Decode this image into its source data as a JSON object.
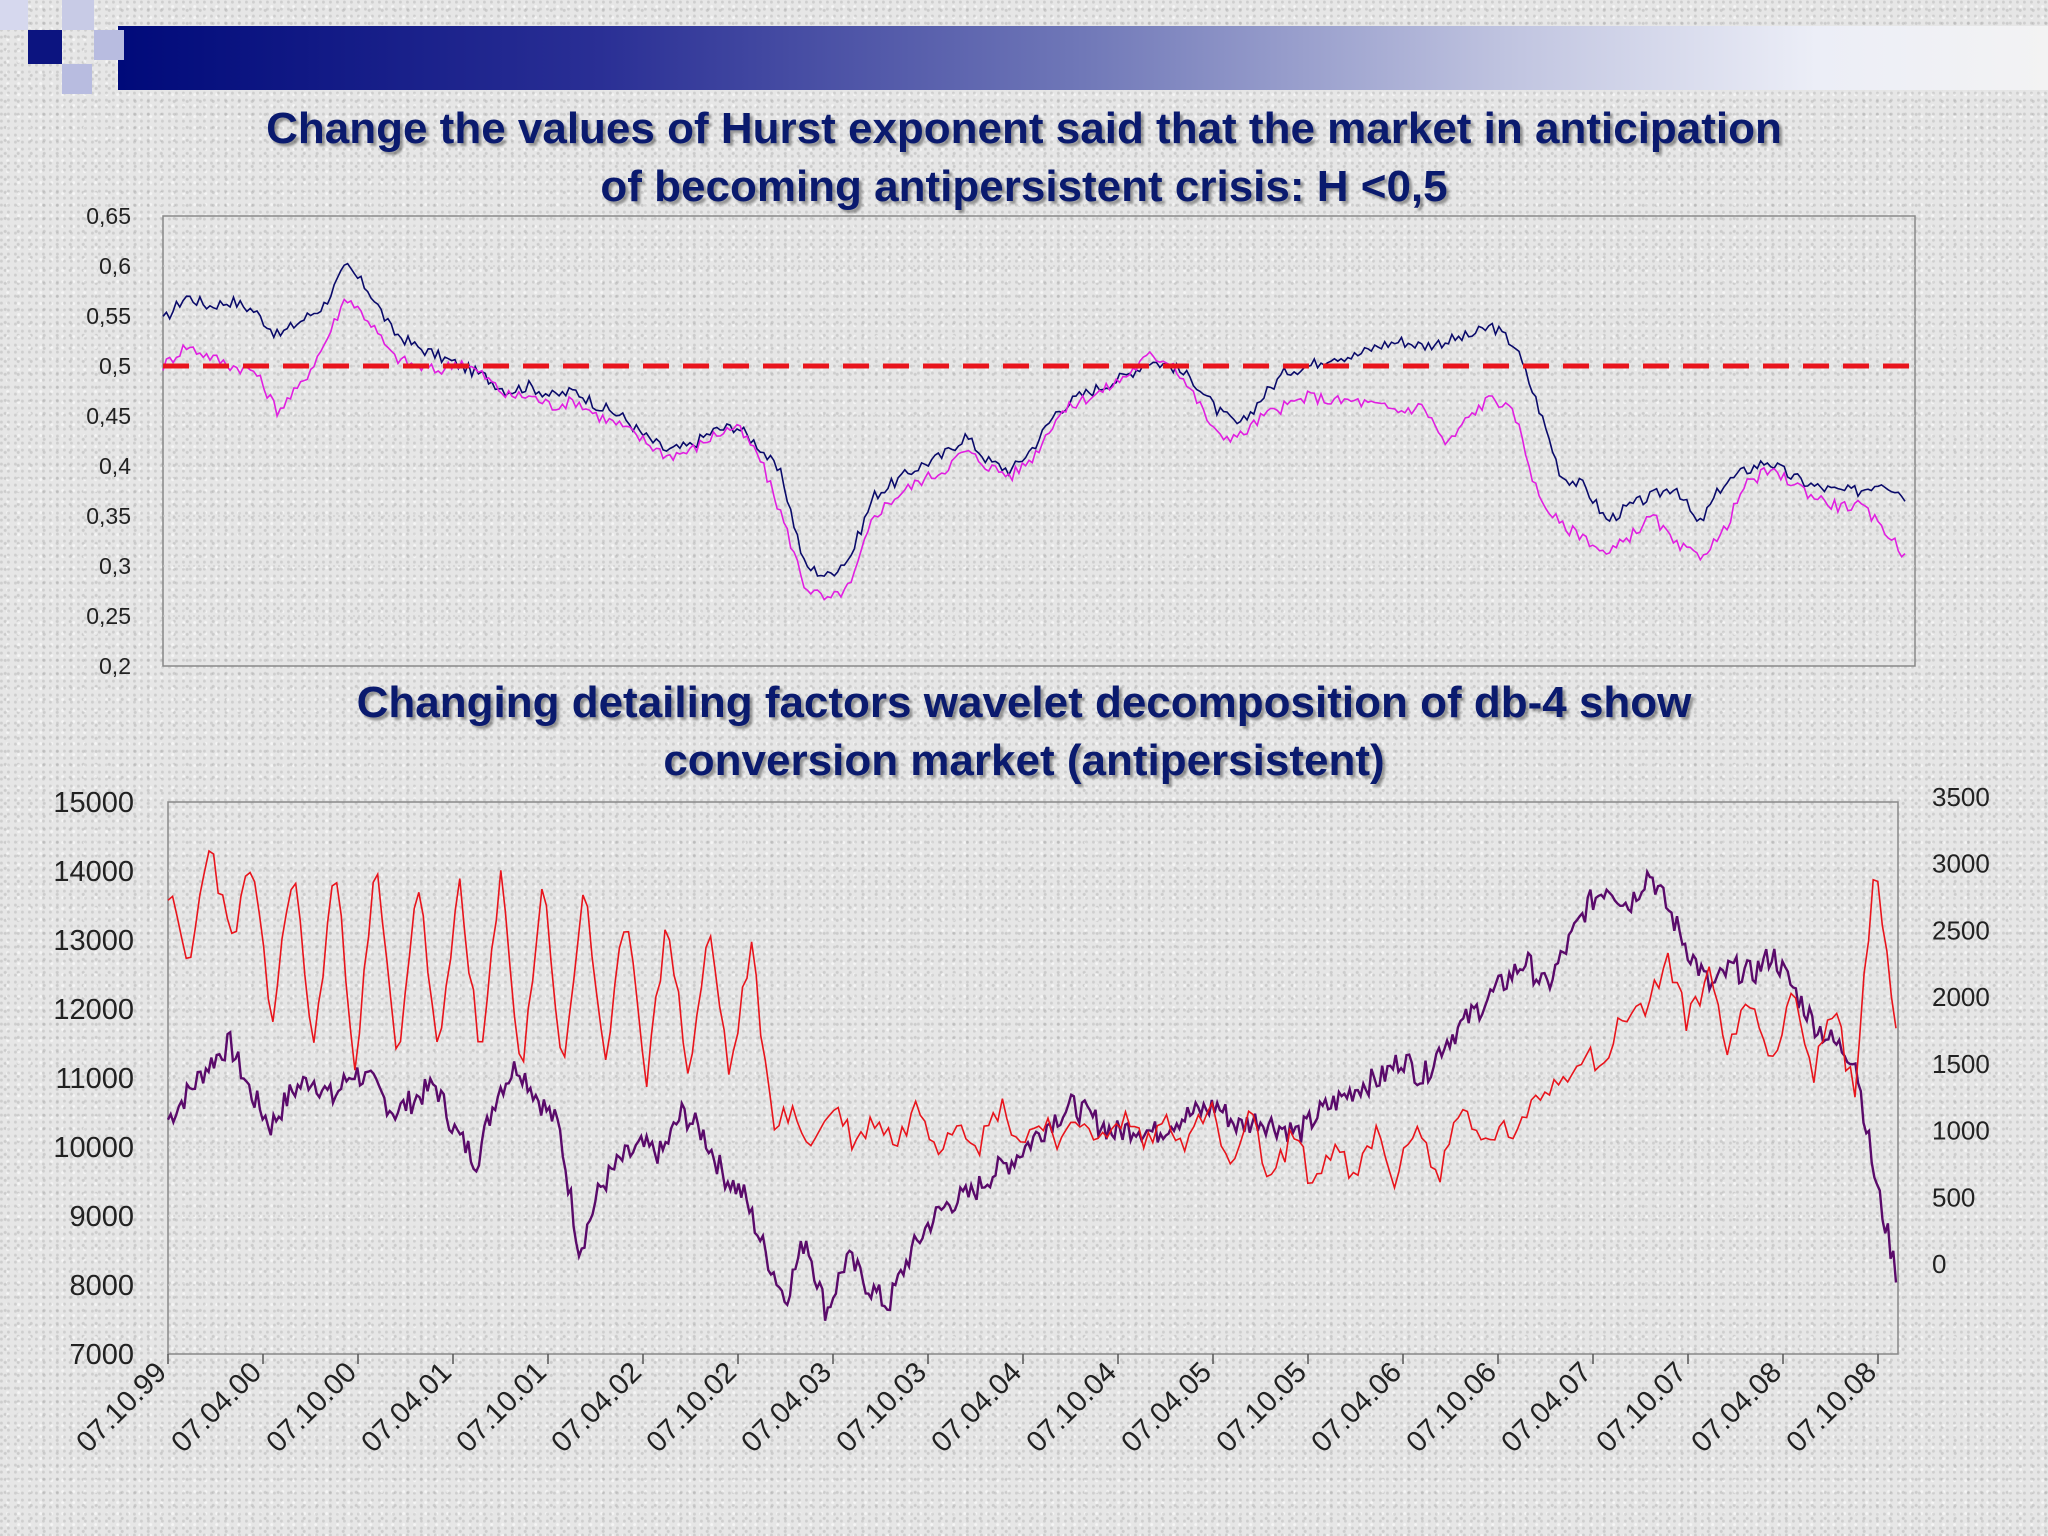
{
  "decor": {
    "band_color_start": "#000a7a",
    "band_color_end": "#f3f3f3",
    "square_dark": "#0c1480",
    "square_light": "#b8bce0"
  },
  "chart_data": [
    {
      "type": "line",
      "title_lines": [
        "Change the values of Hurst exponent said that the market in anticipation",
        "of becoming antipersistent crisis: H <0,5"
      ],
      "ylim": [
        0.2,
        0.65
      ],
      "y_ticks": [
        "0,65",
        "0,6",
        "0,55",
        "0,5",
        "0,45",
        "0,4",
        "0,35",
        "0,3",
        "0,25",
        "0,2"
      ],
      "threshold": {
        "value": 0.5,
        "color": "#e8141c",
        "style": "dashed"
      },
      "series": [
        {
          "color": "#0a0a6a",
          "values": [
            0.545,
            0.57,
            0.56,
            0.565,
            0.555,
            0.53,
            0.545,
            0.56,
            0.6,
            0.575,
            0.535,
            0.52,
            0.51,
            0.5,
            0.49,
            0.475,
            0.48,
            0.47,
            0.475,
            0.46,
            0.45,
            0.43,
            0.415,
            0.42,
            0.435,
            0.44,
            0.42,
            0.39,
            0.3,
            0.29,
            0.31,
            0.37,
            0.385,
            0.4,
            0.41,
            0.43,
            0.405,
            0.395,
            0.42,
            0.455,
            0.47,
            0.48,
            0.49,
            0.505,
            0.5,
            0.485,
            0.455,
            0.44,
            0.47,
            0.495,
            0.5,
            0.51,
            0.51,
            0.52,
            0.525,
            0.52,
            0.525,
            0.53,
            0.54,
            0.52,
            0.46,
            0.39,
            0.38,
            0.345,
            0.36,
            0.37,
            0.38,
            0.34,
            0.38,
            0.395,
            0.405,
            0.39,
            0.38,
            0.375,
            0.375,
            0.385,
            0.37
          ]
        },
        {
          "color": "#e020e0",
          "values": [
            0.5,
            0.52,
            0.51,
            0.5,
            0.495,
            0.455,
            0.48,
            0.52,
            0.57,
            0.545,
            0.51,
            0.5,
            0.495,
            0.505,
            0.49,
            0.47,
            0.47,
            0.46,
            0.465,
            0.45,
            0.44,
            0.425,
            0.41,
            0.415,
            0.43,
            0.44,
            0.41,
            0.35,
            0.28,
            0.265,
            0.28,
            0.35,
            0.37,
            0.385,
            0.395,
            0.415,
            0.4,
            0.39,
            0.41,
            0.45,
            0.465,
            0.475,
            0.49,
            0.51,
            0.505,
            0.47,
            0.43,
            0.43,
            0.45,
            0.46,
            0.47,
            0.465,
            0.465,
            0.46,
            0.455,
            0.46,
            0.42,
            0.45,
            0.47,
            0.45,
            0.37,
            0.34,
            0.33,
            0.31,
            0.33,
            0.35,
            0.32,
            0.31,
            0.33,
            0.38,
            0.395,
            0.385,
            0.37,
            0.36,
            0.36,
            0.34,
            0.31
          ]
        }
      ]
    },
    {
      "type": "line",
      "title_lines": [
        "Changing detailing factors wavelet decomposition of db-4 show",
        "conversion market (antipersistent)"
      ],
      "ylim": [
        7000,
        15000
      ],
      "y2lim": [
        0,
        3500
      ],
      "y_ticks": [
        "15000",
        "14000",
        "13000",
        "12000",
        "11000",
        "10000",
        "9000",
        "8000",
        "7000"
      ],
      "y2_ticks": [
        "3500",
        "3000",
        "2500",
        "2000",
        "1500",
        "1000",
        "500",
        "0"
      ],
      "x_ticks": [
        "07.10.99",
        "07.04.00",
        "07.10.00",
        "07.04.01",
        "07.10.01",
        "07.04.02",
        "07.10.02",
        "07.04.03",
        "07.10.03",
        "07.04.04",
        "07.10.04",
        "07.04.05",
        "07.10.05",
        "07.04.06",
        "07.10.06",
        "07.04.07",
        "07.10.07",
        "07.04.08",
        "07.10.08"
      ],
      "series": [
        {
          "color": "#5a0a6a",
          "axis": "left",
          "values": [
            10400,
            10800,
            11200,
            11500,
            10800,
            10300,
            10800,
            11000,
            10700,
            11100,
            10900,
            10500,
            10700,
            10900,
            10200,
            9800,
            10800,
            11200,
            10700,
            10300,
            8500,
            9400,
            9800,
            10000,
            9900,
            10500,
            10200,
            9600,
            9300,
            8500,
            7800,
            8700,
            7600,
            8400,
            8000,
            7700,
            8400,
            8900,
            9200,
            9300,
            9600,
            9800,
            10100,
            10400,
            10600,
            10400,
            10200,
            10300,
            10200,
            10400,
            10500,
            10600,
            10300,
            10400,
            10300,
            10200,
            10500,
            10700,
            10900,
            11000,
            11300,
            11000,
            11500,
            11800,
            12100,
            12400,
            12700,
            12300,
            12900,
            13500,
            13800,
            13500,
            14000,
            13400,
            12800,
            12300,
            12600,
            12500,
            12800,
            12300,
            11800,
            11500,
            11300,
            9500,
            8200
          ]
        },
        {
          "color": "#e8141c",
          "axis": "right",
          "values": [
            2800,
            2200,
            3200,
            2400,
            3000,
            1800,
            3000,
            1600,
            3000,
            1500,
            3000,
            1500,
            2900,
            1500,
            2900,
            1500,
            2900,
            1400,
            2900,
            1400,
            2900,
            1400,
            2700,
            1400,
            2600,
            1400,
            2500,
            1400,
            2400,
            1100,
            1100,
            900,
            1200,
            900,
            1100,
            900,
            1200,
            900,
            1100,
            900,
            1200,
            900,
            1100,
            900,
            1100,
            900,
            1100,
            900,
            1100,
            900,
            1200,
            700,
            1100,
            600,
            1000,
            600,
            900,
            600,
            1000,
            600,
            1100,
            600,
            1200,
            900,
            1000,
            1000,
            1300,
            1400,
            1600,
            1500,
            1900,
            1900,
            2300,
            1800,
            2200,
            1600,
            2000,
            1500,
            2100,
            1400,
            1900,
            1300,
            3000,
            1800
          ]
        }
      ]
    }
  ]
}
